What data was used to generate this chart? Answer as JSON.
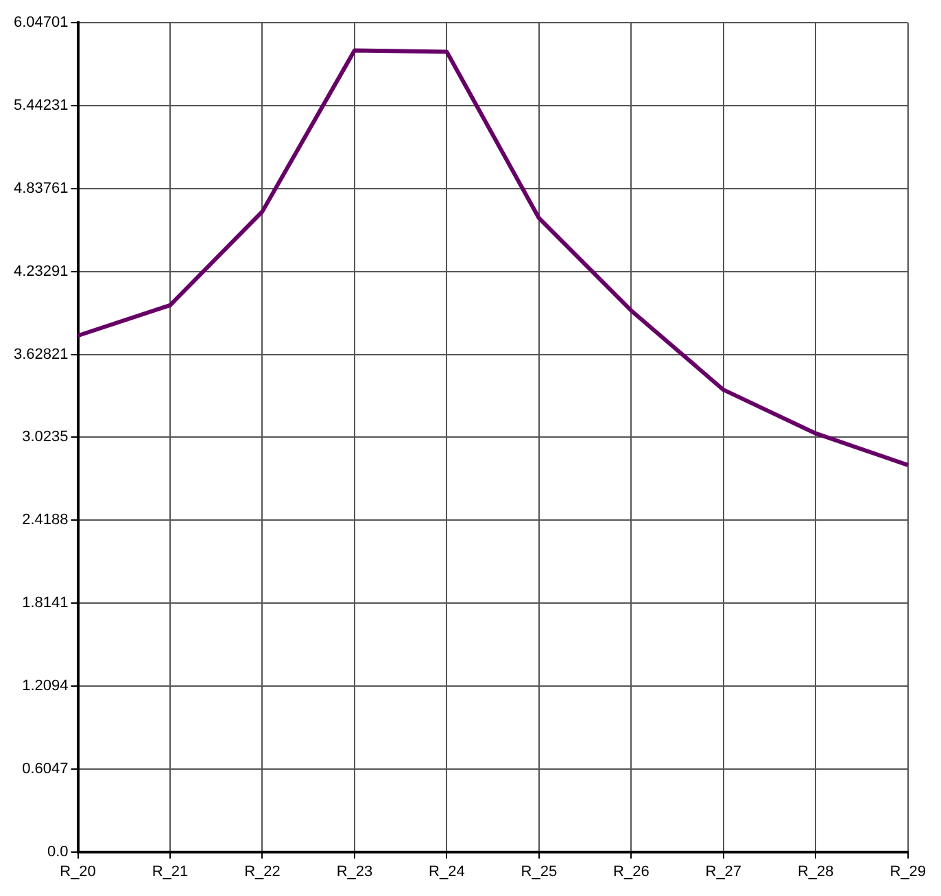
{
  "chart_data": {
    "type": "line",
    "categories": [
      "R_20",
      "R_21",
      "R_22",
      "R_23",
      "R_24",
      "R_25",
      "R_26",
      "R_27",
      "R_28",
      "R_29"
    ],
    "series": [
      {
        "color": "#660066",
        "values": [
          3.765,
          3.987,
          4.67,
          5.845,
          5.835,
          4.622,
          3.948,
          3.37,
          3.052,
          2.821
        ]
      }
    ],
    "ylim": [
      0,
      6.04701
    ],
    "yticks": [
      {
        "value": 0,
        "label": "0.0"
      },
      0.6047,
      1.2094,
      1.8141,
      2.4188,
      3.0235,
      3.62821,
      4.23291,
      4.83761,
      5.44231,
      6.04701
    ],
    "grid": true,
    "legend": false,
    "marker": "none",
    "line_style": "solid"
  }
}
